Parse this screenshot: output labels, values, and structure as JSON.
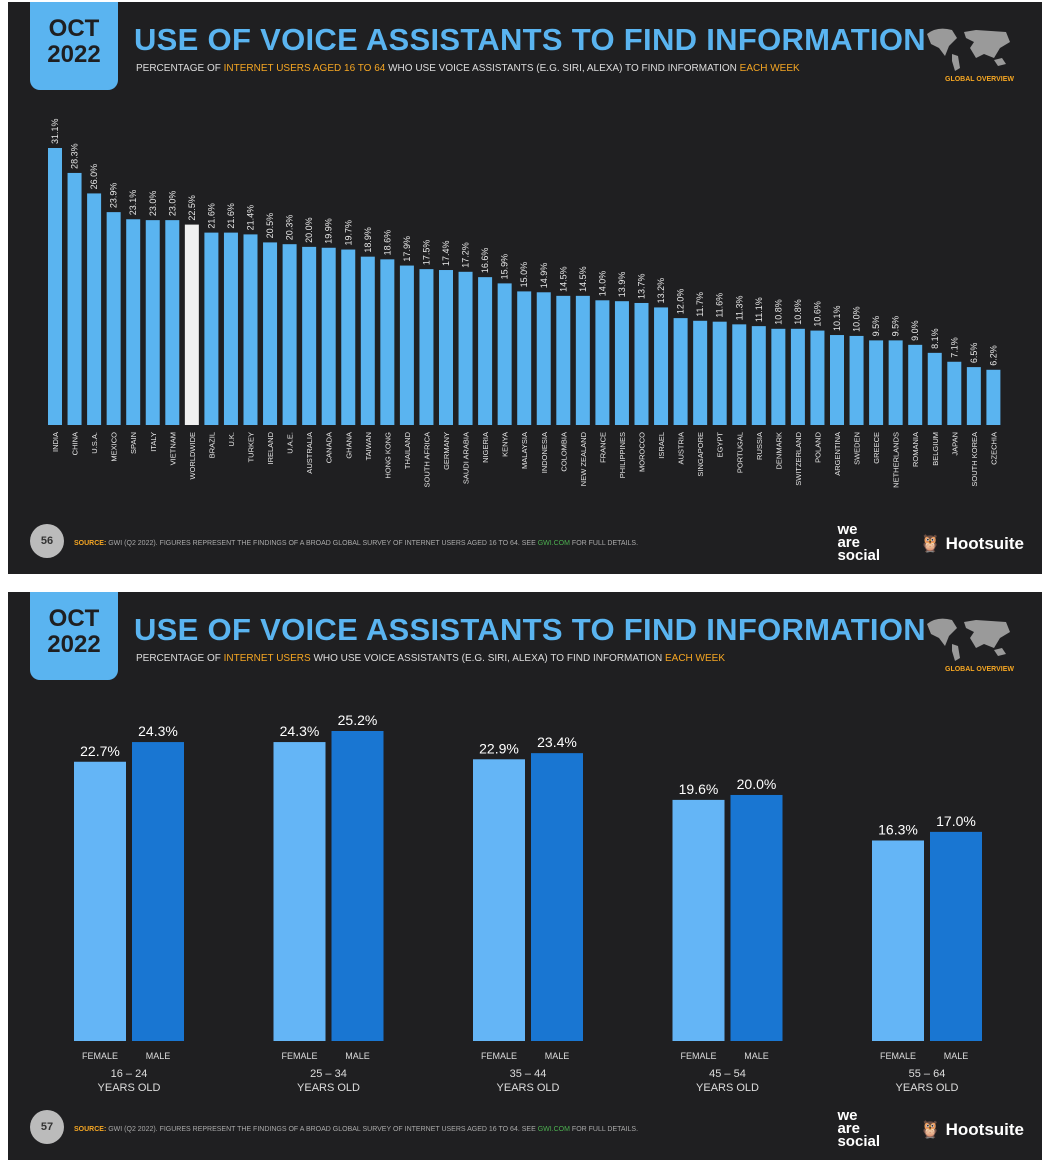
{
  "slides": [
    {
      "date_month": "OCT",
      "date_year": "2022",
      "title": "USE OF VOICE ASSISTANTS TO FIND INFORMATION",
      "subtitle_pre": "PERCENTAGE OF ",
      "subtitle_hl1": "INTERNET USERS AGED 16 TO 64",
      "subtitle_mid": " WHO USE VOICE ASSISTANTS (E.G. SIRI, ALEXA) TO FIND INFORMATION ",
      "subtitle_hl2": "EACH WEEK",
      "badge": "GLOBAL OVERVIEW",
      "page": "56",
      "source_label": "SOURCE:",
      "source_text": " GWI (Q2 2022). FIGURES REPRESENT THE FINDINGS OF A BROAD GLOBAL SURVEY OF INTERNET USERS AGED 16 TO 64. SEE ",
      "source_link": "GWI.COM",
      "source_end": " FOR FULL DETAILS."
    },
    {
      "date_month": "OCT",
      "date_year": "2022",
      "title": "USE OF VOICE ASSISTANTS TO FIND INFORMATION",
      "subtitle_pre": "PERCENTAGE OF ",
      "subtitle_hl1": "INTERNET USERS",
      "subtitle_mid": " WHO USE VOICE ASSISTANTS (E.G. SIRI, ALEXA) TO FIND INFORMATION ",
      "subtitle_hl2": "EACH WEEK",
      "badge": "GLOBAL OVERVIEW",
      "page": "57",
      "source_label": "SOURCE:",
      "source_text": " GWI (Q2 2022). FIGURES REPRESENT THE FINDINGS OF A BROAD GLOBAL SURVEY OF INTERNET USERS AGED 16 TO 64. SEE ",
      "source_link": "GWI.COM",
      "source_end": " FOR FULL DETAILS."
    }
  ],
  "logos": {
    "we_are_social": "we are social",
    "hootsuite": "Hootsuite"
  },
  "chart_data": [
    {
      "type": "bar",
      "title": "USE OF VOICE ASSISTANTS TO FIND INFORMATION",
      "ylim": [
        0,
        32
      ],
      "grid": false,
      "value_suffix": "%",
      "colors": {
        "country": "#5ab4f0",
        "worldwide": "#f0f0f0"
      },
      "categories": [
        "INDIA",
        "CHINA",
        "U.S.A.",
        "MEXICO",
        "SPAIN",
        "ITALY",
        "VIETNAM",
        "WORLDWIDE",
        "BRAZIL",
        "U.K.",
        "TURKEY",
        "IRELAND",
        "U.A.E.",
        "AUSTRALIA",
        "CANADA",
        "GHANA",
        "TAIWAN",
        "HONG KONG",
        "THAILAND",
        "SOUTH AFRICA",
        "GERMANY",
        "SAUDI ARABIA",
        "NIGERIA",
        "KENYA",
        "MALAYSIA",
        "INDONESIA",
        "COLOMBIA",
        "NEW ZEALAND",
        "FRANCE",
        "PHILIPPINES",
        "MOROCCO",
        "ISRAEL",
        "AUSTRIA",
        "SINGAPORE",
        "EGYPT",
        "PORTUGAL",
        "RUSSIA",
        "DENMARK",
        "SWITZERLAND",
        "POLAND",
        "ARGENTINA",
        "SWEDEN",
        "GREECE",
        "NETHERLANDS",
        "ROMANIA",
        "BELGIUM",
        "JAPAN",
        "SOUTH KOREA",
        "CZECHIA"
      ],
      "values": [
        31.1,
        28.3,
        26.0,
        23.9,
        23.1,
        23.0,
        23.0,
        22.5,
        21.6,
        21.6,
        21.4,
        20.5,
        20.3,
        20.0,
        19.9,
        19.7,
        18.9,
        18.6,
        17.9,
        17.5,
        17.4,
        17.2,
        16.6,
        15.9,
        15.0,
        14.9,
        14.5,
        14.5,
        14.0,
        13.9,
        13.7,
        13.2,
        12.0,
        11.7,
        11.6,
        11.3,
        11.1,
        10.8,
        10.8,
        10.6,
        10.1,
        10.0,
        9.5,
        9.5,
        9.0,
        8.1,
        7.1,
        6.5,
        6.2
      ]
    },
    {
      "type": "bar",
      "title": "USE OF VOICE ASSISTANTS TO FIND INFORMATION",
      "ylim": [
        0,
        26
      ],
      "grid": false,
      "value_suffix": "%",
      "categories": [
        "16 – 24",
        "25 – 34",
        "35 – 44",
        "45 – 54",
        "55 – 64"
      ],
      "category_suffix": "YEARS OLD",
      "series": [
        {
          "name": "FEMALE",
          "color": "#64b5f6",
          "values": [
            22.7,
            24.3,
            22.9,
            19.6,
            16.3
          ]
        },
        {
          "name": "MALE",
          "color": "#1976d2",
          "values": [
            24.3,
            25.2,
            23.4,
            20.0,
            17.0
          ]
        }
      ]
    }
  ]
}
